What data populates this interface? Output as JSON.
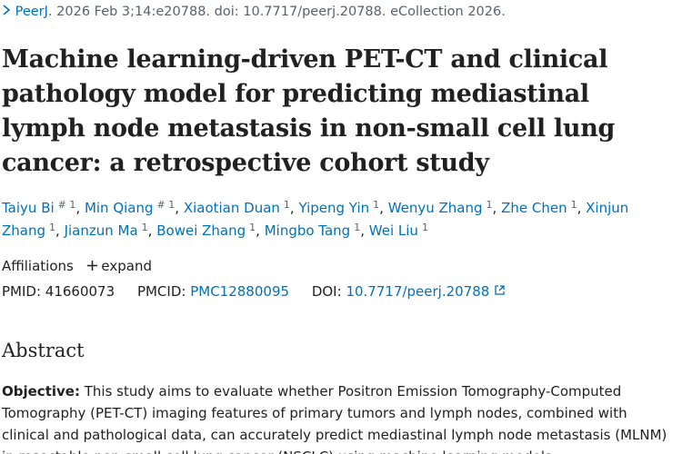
{
  "citation": {
    "journal": "PeerJ",
    "text": ". 2026 Feb 3;14:e20788. doi: 10.7717/peerj.20788. eCollection 2026."
  },
  "title": "Machine learning-driven PET-CT and clinical pathology model for predicting mediastinal lymph node metastasis in non-small cell lung cancer: a retrospective cohort study",
  "author_separator": ",",
  "authors": [
    {
      "name": "Taiyu Bi",
      "sup": "# 1"
    },
    {
      "name": "Min Qiang",
      "sup": "# 1"
    },
    {
      "name": "Xiaotian Duan",
      "sup": "1"
    },
    {
      "name": "Yipeng Yin",
      "sup": "1"
    },
    {
      "name": "Wenyu Zhang",
      "sup": "1"
    },
    {
      "name": "Zhe Chen",
      "sup": "1"
    },
    {
      "name": "Xinjun Zhang",
      "sup": "1"
    },
    {
      "name": "Jianzun Ma",
      "sup": "1"
    },
    {
      "name": "Bowei Zhang",
      "sup": "1"
    },
    {
      "name": "Mingbo Tang",
      "sup": "1"
    },
    {
      "name": "Wei Liu",
      "sup": "1"
    }
  ],
  "affiliations": {
    "label": "Affiliations",
    "toggle": "expand"
  },
  "identifiers": {
    "pmid_label": "PMID:",
    "pmid": "41660073",
    "pmcid_label": "PMCID:",
    "pmcid": "PMC12880095",
    "doi_label": "DOI:",
    "doi": "10.7717/peerj.20788"
  },
  "abstract": {
    "heading": "Abstract",
    "objective_label": "Objective:",
    "objective_text": "This study aims to evaluate whether Positron Emission Tomography-Computed Tomography (PET-CT) imaging features of primary tumors and lymph nodes, combined with clinical and pathological data, can accurately predict mediastinal lymph node metastasis (MLNM) in resectable non-small cell lung cancer (NSCLC) using machine learning models."
  }
}
